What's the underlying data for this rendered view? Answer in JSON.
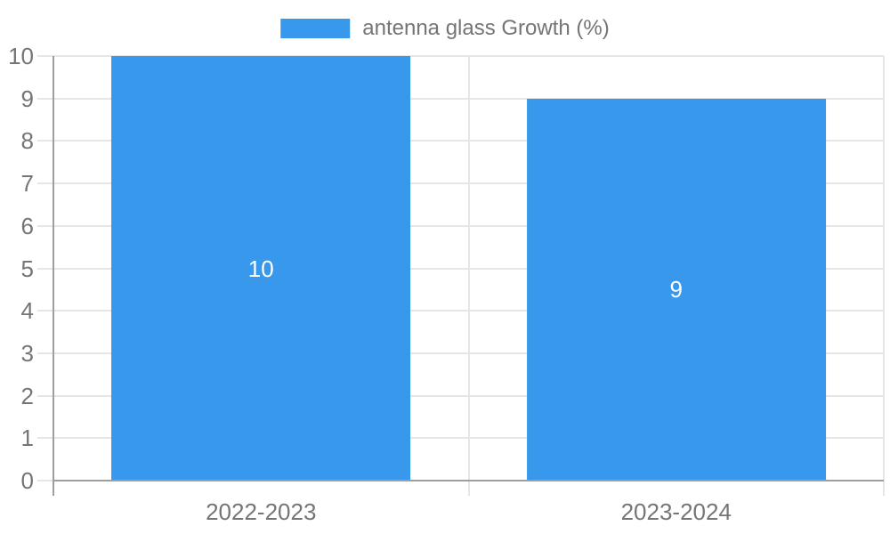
{
  "chart_data": {
    "type": "bar",
    "title": "",
    "legend": {
      "label": "antenna glass Growth (%)",
      "position": "top-center",
      "swatch_color": "#3899ec"
    },
    "categories": [
      "2022-2023",
      "2023-2024"
    ],
    "series": [
      {
        "name": "antenna glass Growth (%)",
        "values": [
          10,
          9
        ]
      }
    ],
    "value_labels": [
      "10",
      "9"
    ],
    "xlabel": "",
    "ylabel": "",
    "ylim": [
      0,
      10
    ],
    "yticks": [
      "0",
      "1",
      "2",
      "3",
      "4",
      "5",
      "6",
      "7",
      "8",
      "9",
      "10"
    ],
    "grid": true,
    "bar_width_fraction": 0.72,
    "colors": {
      "bar": "#3899ec",
      "gridline": "#e6e6e6",
      "axis_line": "#9e9e9e",
      "tick_text": "#757575",
      "value_label_text": "#ffffff",
      "background": "#ffffff"
    }
  }
}
